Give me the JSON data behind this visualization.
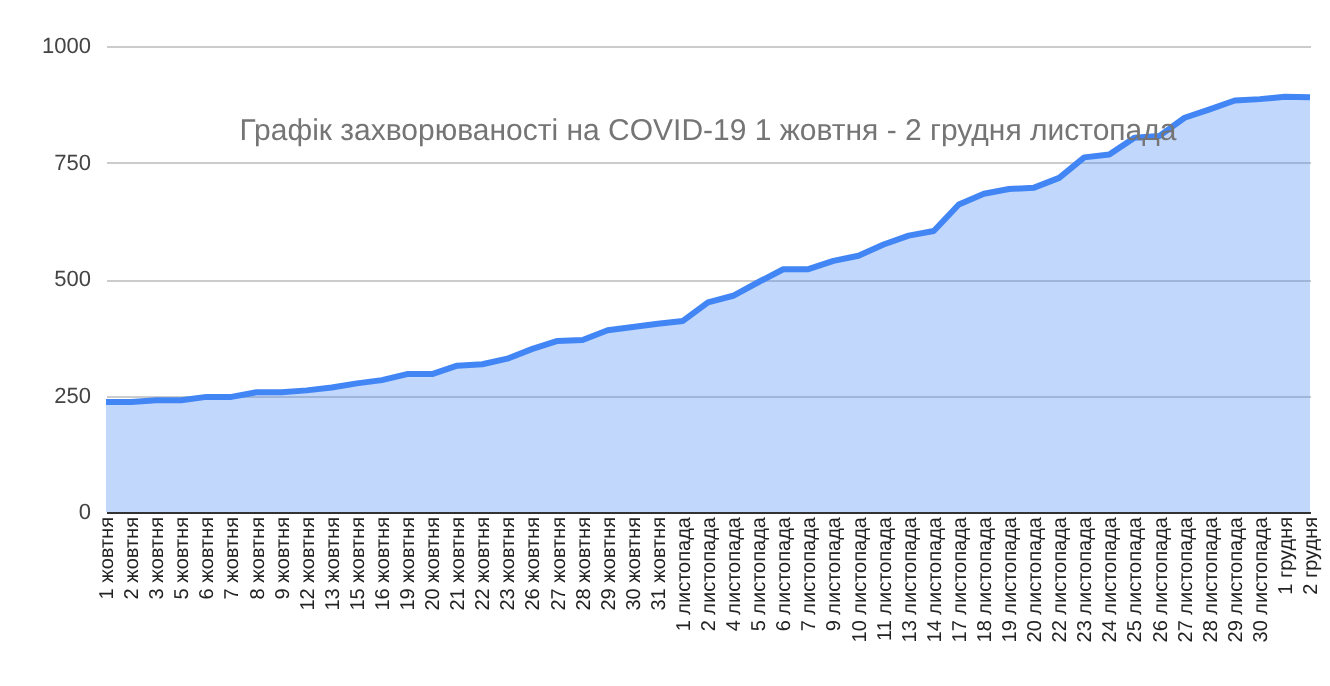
{
  "chart_data": {
    "type": "area",
    "title": "Графік захворюваності на COVID-19 1 жовтня - 2 грудня листопада",
    "categories": [
      "1 жовтня",
      "2 жовтня",
      "3 жовтня",
      "5 жовтня",
      "6 жовтня",
      "7 жовтня",
      "8 жовтня",
      "9 жовтня",
      "12 жовтня",
      "13 жовтня",
      "15 жовтня",
      "16 жовтня",
      "19 жовтня",
      "20 жовтня",
      "21 жовтня",
      "22 жовтня",
      "23 жовтня",
      "26 жовтня",
      "27 жовтня",
      "28 жовтня",
      "29 жовтня",
      "30 жовтня",
      "31 жовтня",
      "1 листопада",
      "2 листопада",
      "4 листопада",
      "5 листопада",
      "6 листопада",
      "7 листопада",
      "9 листопада",
      "10 листопада",
      "11 листопада",
      "13 листопада",
      "14 листопада",
      "17 листопада",
      "18 листопада",
      "19 листопада",
      "20 листопада",
      "22 листопада",
      "23 листопада",
      "24 листопада",
      "25 листопада",
      "26 листопада",
      "27 листопада",
      "28 листопада",
      "29 листопада",
      "30 листопада",
      "1 грудня",
      "2 грудня"
    ],
    "series": [
      {
        "color": "#4285f4",
        "values": [
          236,
          236,
          240,
          240,
          247,
          247,
          257,
          257,
          261,
          267,
          276,
          283,
          296,
          296,
          314,
          317,
          329,
          350,
          367,
          369,
          390,
          397,
          404,
          410,
          450,
          464,
          493,
          521,
          521,
          539,
          550,
          574,
          593,
          603,
          660,
          683,
          693,
          696,
          717,
          761,
          767,
          803,
          807,
          846,
          864,
          883,
          886,
          891,
          890
        ]
      }
    ],
    "ylim": [
      0,
      1000
    ],
    "yticks": [
      0,
      250,
      500,
      750,
      1000
    ],
    "grid": "y"
  }
}
